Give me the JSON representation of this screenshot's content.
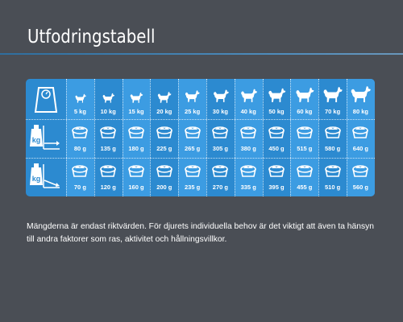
{
  "title": "Utfodringstabell",
  "colors": {
    "background": "#4a4e55",
    "panel": "#2c8ad0",
    "panel_alt": "#3c9ce2",
    "rule": "#4f8dbd",
    "text": "#ffffff"
  },
  "row_icons": [
    "scale-icon",
    "bowl-scale-icon",
    "bowl-scale-low-icon"
  ],
  "weights": [
    "5 kg",
    "10 kg",
    "15 kg",
    "20 kg",
    "25 kg",
    "30 kg",
    "40 kg",
    "50 kg",
    "60 kg",
    "70 kg",
    "80 kg"
  ],
  "ration_high": [
    "80 g",
    "135 g",
    "180 g",
    "225 g",
    "265 g",
    "305 g",
    "380 g",
    "450 g",
    "515 g",
    "580 g",
    "640 g"
  ],
  "ration_low": [
    "70 g",
    "120 g",
    "160 g",
    "200 g",
    "235 g",
    "270 g",
    "335 g",
    "395 g",
    "455 g",
    "510 g",
    "560 g"
  ],
  "row_icon_labels": {
    "kg": "kg"
  },
  "note": "Mängderna är endast riktvärden. För djurets individuella behov är det viktigt att även ta hänsyn till andra faktorer som ras, aktivitet och hållningsvillkor."
}
